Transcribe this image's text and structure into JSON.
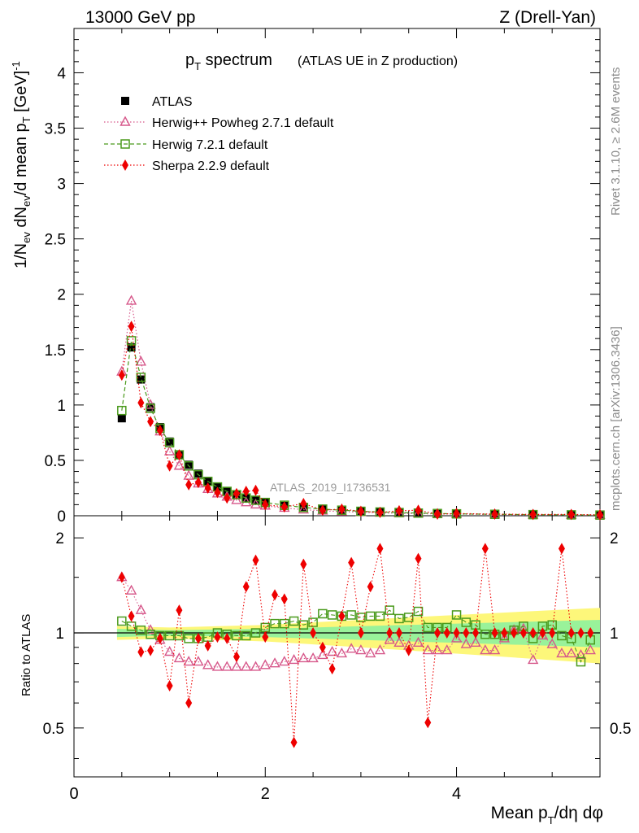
{
  "header": {
    "energy": "13000 GeV pp",
    "process": "Z (Drell-Yan)"
  },
  "side_labels": {
    "rivet": "Rivet 3.1.10, ≥ 2.6M events",
    "mcplots": "mcplots.cern.ch [arXiv:1306.3436]"
  },
  "chart_data": [
    {
      "type": "scatter",
      "panel": "main",
      "title_main": "p",
      "title_sub": "T",
      "title_rest": " spectrum",
      "subtitle": "(ATLAS UE in Z production)",
      "watermark": "ATLAS_2019_I1736531",
      "ylabel": "1/N_ev dN_ev/d mean p_T [GeV]^-1",
      "ylabel_parts": {
        "a": "1/N",
        "b": "ev",
        "c": " dN",
        "d": "ev",
        "e": "/d mean p",
        "f": "T",
        "g": " [GeV]",
        "h": "-1"
      },
      "xlim": [
        0,
        5.5
      ],
      "ylim": [
        0,
        4.4
      ],
      "yticks": [
        "0",
        "0.5",
        "1",
        "1.5",
        "2",
        "2.5",
        "3",
        "3.5",
        "4"
      ],
      "ytick_values": [
        0,
        0.5,
        1,
        1.5,
        2,
        2.5,
        3,
        3.5,
        4
      ],
      "legend": [
        {
          "label": "ATLAS",
          "marker": "square-filled",
          "color": "#000000"
        },
        {
          "label": "Herwig++ Powheg 2.7.1 default",
          "marker": "triangle-open",
          "color": "#d6578a"
        },
        {
          "label": "Herwig 7.2.1 default",
          "marker": "square-open",
          "color": "#4a9a1c"
        },
        {
          "label": "Sherpa 2.2.9 default",
          "marker": "diamond-filled",
          "color": "#ee0000"
        }
      ],
      "x": [
        0.5,
        0.6,
        0.7,
        0.8,
        0.9,
        1.0,
        1.1,
        1.2,
        1.3,
        1.4,
        1.5,
        1.6,
        1.7,
        1.8,
        1.9,
        2.0,
        2.2,
        2.4,
        2.6,
        2.8,
        3.0,
        3.2,
        3.4,
        3.6,
        3.8,
        4.0,
        4.4,
        4.8,
        5.2,
        5.5
      ],
      "series": [
        {
          "name": "ATLAS",
          "values": [
            0.88,
            1.52,
            1.23,
            0.98,
            0.8,
            0.67,
            0.55,
            0.46,
            0.38,
            0.31,
            0.26,
            0.22,
            0.19,
            0.16,
            0.14,
            0.12,
            0.09,
            0.07,
            0.055,
            0.045,
            0.037,
            0.031,
            0.026,
            0.022,
            0.019,
            0.016,
            0.012,
            0.009,
            0.007,
            0.006
          ]
        },
        {
          "name": "Herwig++ Powheg 2.7.1 default",
          "values": [
            1.3,
            1.94,
            1.39,
            1.0,
            0.76,
            0.58,
            0.45,
            0.36,
            0.29,
            0.24,
            0.2,
            0.17,
            0.14,
            0.12,
            0.1,
            0.09,
            0.07,
            0.055,
            0.045,
            0.037,
            0.031,
            0.026,
            0.022,
            0.019,
            0.016,
            0.014,
            0.011,
            0.008,
            0.006,
            0.005
          ]
        },
        {
          "name": "Herwig 7.2.1 default",
          "values": [
            0.95,
            1.58,
            1.25,
            0.97,
            0.79,
            0.66,
            0.55,
            0.45,
            0.37,
            0.31,
            0.26,
            0.22,
            0.19,
            0.16,
            0.14,
            0.12,
            0.095,
            0.075,
            0.06,
            0.05,
            0.04,
            0.034,
            0.029,
            0.024,
            0.02,
            0.017,
            0.013,
            0.01,
            0.008,
            0.006
          ]
        },
        {
          "name": "Sherpa 2.2.9 default",
          "values": [
            1.27,
            1.71,
            1.02,
            0.85,
            0.77,
            0.45,
            0.55,
            0.28,
            0.3,
            0.25,
            0.21,
            0.16,
            0.2,
            0.22,
            0.23,
            0.1,
            0.08,
            0.11,
            0.05,
            0.06,
            0.04,
            0.03,
            0.045,
            0.05,
            0.015,
            0.02,
            0.015,
            0.012,
            0.012,
            0.008
          ]
        }
      ]
    },
    {
      "type": "scatter",
      "panel": "ratio",
      "ylabel": "Ratio to ATLAS",
      "xlabel_parts": {
        "a": "Mean p",
        "b": "T",
        "c": "/dη dφ"
      },
      "xlim": [
        0,
        5.5
      ],
      "ylim": [
        0.35,
        2.35
      ],
      "xticks": [
        "0",
        "2",
        "4"
      ],
      "xtick_values": [
        0,
        2,
        4
      ],
      "yticks": [
        "0.5",
        "1",
        "2"
      ],
      "ytick_values": [
        0.5,
        1,
        2
      ],
      "band": {
        "x": [
          0.45,
          1.0,
          2.0,
          3.0,
          4.0,
          5.0,
          5.5
        ],
        "inner": [
          0.03,
          0.02,
          0.03,
          0.05,
          0.07,
          0.09,
          0.1
        ],
        "outer": [
          0.05,
          0.04,
          0.06,
          0.1,
          0.14,
          0.18,
          0.2
        ]
      },
      "x": [
        0.5,
        0.6,
        0.7,
        0.8,
        0.9,
        1.0,
        1.1,
        1.2,
        1.3,
        1.4,
        1.5,
        1.6,
        1.7,
        1.8,
        1.9,
        2.0,
        2.1,
        2.2,
        2.3,
        2.4,
        2.5,
        2.6,
        2.7,
        2.8,
        2.9,
        3.0,
        3.1,
        3.2,
        3.3,
        3.4,
        3.5,
        3.6,
        3.7,
        3.8,
        3.9,
        4.0,
        4.1,
        4.2,
        4.3,
        4.4,
        4.5,
        4.6,
        4.7,
        4.8,
        4.9,
        5.0,
        5.1,
        5.2,
        5.3,
        5.4
      ],
      "series": [
        {
          "name": "Herwig++ Powheg 2.7.1 default",
          "values": [
            1.5,
            1.36,
            1.18,
            1.02,
            0.95,
            0.87,
            0.83,
            0.81,
            0.81,
            0.79,
            0.78,
            0.78,
            0.78,
            0.78,
            0.78,
            0.79,
            0.8,
            0.81,
            0.82,
            0.83,
            0.83,
            0.85,
            0.87,
            0.86,
            0.89,
            0.88,
            0.86,
            0.88,
            0.95,
            0.93,
            0.91,
            0.93,
            0.88,
            0.88,
            0.88,
            0.96,
            0.92,
            0.93,
            0.88,
            0.88,
            0.96,
            1.02,
            1.03,
            0.82,
            0.98,
            0.92,
            0.86,
            0.86,
            0.85,
            0.88
          ]
        },
        {
          "name": "Herwig 7.2.1 default",
          "values": [
            1.09,
            1.05,
            1.02,
            0.99,
            0.98,
            0.98,
            0.98,
            0.96,
            0.96,
            0.97,
            1.0,
            0.99,
            0.98,
            0.98,
            1.0,
            1.04,
            1.07,
            1.07,
            1.09,
            1.06,
            1.08,
            1.15,
            1.14,
            1.13,
            1.14,
            1.12,
            1.13,
            1.13,
            1.18,
            1.11,
            1.12,
            1.17,
            1.04,
            1.04,
            1.04,
            1.14,
            1.08,
            1.06,
            0.99,
            0.99,
            0.98,
            1.02,
            1.05,
            0.96,
            1.05,
            1.06,
            0.98,
            0.96,
            0.81,
            0.95
          ]
        },
        {
          "name": "Sherpa 2.2.9 default",
          "values": [
            1.5,
            1.13,
            0.87,
            0.88,
            0.96,
            0.68,
            1.18,
            0.6,
            0.96,
            0.91,
            0.97,
            0.96,
            0.84,
            1.4,
            1.7,
            0.97,
            1.32,
            1.28,
            0.45,
            1.65,
            1.0,
            0.9,
            0.77,
            1.13,
            1.67,
            1.0,
            1.4,
            1.85,
            1.0,
            1.0,
            0.88,
            1.72,
            0.52,
            1.0,
            1.0,
            1.0,
            1.0,
            1.0,
            1.85,
            1.0,
            1.0,
            1.0,
            1.0,
            1.0,
            1.0,
            1.0,
            1.85,
            1.0,
            1.0,
            1.0
          ]
        }
      ]
    }
  ]
}
